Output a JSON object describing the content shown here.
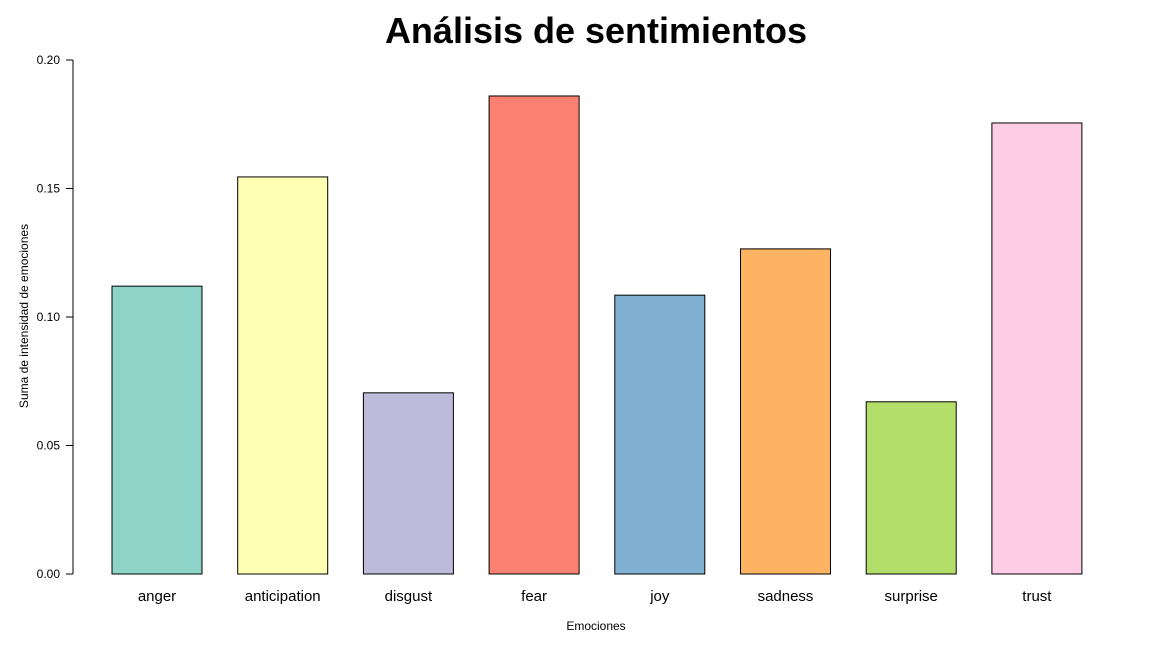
{
  "chart_data": {
    "type": "bar",
    "title": "Análisis de sentimientos",
    "xlabel": "Emociones",
    "ylabel": "Suma de intensidad de emociones",
    "categories": [
      "anger",
      "anticipation",
      "disgust",
      "fear",
      "joy",
      "sadness",
      "surprise",
      "trust"
    ],
    "values": [
      0.112,
      0.1545,
      0.0705,
      0.186,
      0.1085,
      0.1265,
      0.067,
      0.1755
    ],
    "colors": [
      "#8DD3C7",
      "#FFFFB3",
      "#BEBADA",
      "#FB8072",
      "#80B1D3",
      "#FDB462",
      "#B3DE69",
      "#FCCDE5"
    ],
    "yticks": [
      "0.00",
      "0.05",
      "0.10",
      "0.15",
      "0.20"
    ],
    "ylim": [
      0,
      0.2
    ],
    "grid": false,
    "legend": "none"
  }
}
